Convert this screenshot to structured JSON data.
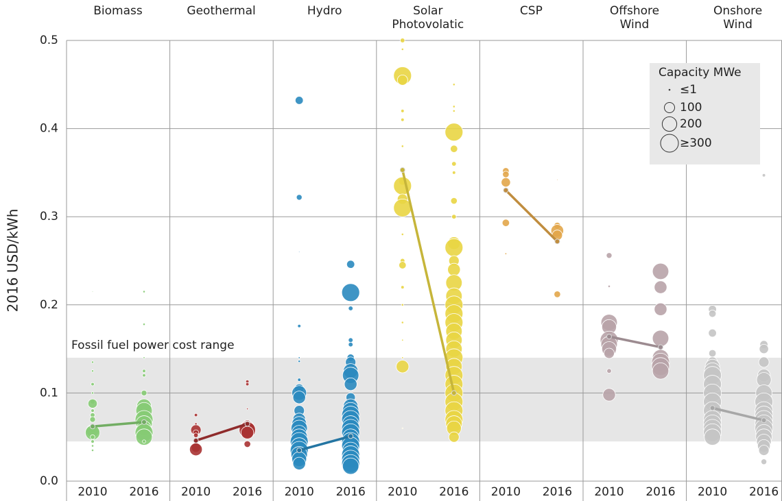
{
  "chart_data": {
    "type": "bubble",
    "y_label": "2016 USD/kWh",
    "ylim": [
      0,
      0.5
    ],
    "yticks": [
      {
        "value": 0,
        "label": "0.0"
      },
      0.1,
      0.2,
      0.3,
      0.4,
      0.5
    ],
    "grid": true,
    "band": {
      "label": "Fossil fuel power cost range",
      "range": [
        0.045,
        0.14
      ],
      "color": "#e6e6e6"
    },
    "size_max": 300,
    "legend": {
      "title": "Capacity MWe",
      "sizes": [
        {
          "value": 1,
          "label": "≤1"
        },
        100,
        200,
        {
          "value": 300,
          "label": "≥300"
        }
      ]
    },
    "series": [
      {
        "name": "Biomass",
        "color": "#86cb74",
        "groups": [
          {
            "year": "2010",
            "average": 0.062,
            "values": [
              0.215,
              0.135,
              0.125,
              0.11,
              0.1,
              0.09,
              0.088,
              0.08,
              0.075,
              0.07,
              0.06,
              0.057,
              0.055,
              0.05,
              0.045,
              0.04,
              0.035
            ],
            "sizes": [
              1,
              5,
              5,
              10,
              5,
              20,
              80,
              10,
              20,
              30,
              60,
              150,
              200,
              20,
              10,
              5,
              5
            ]
          },
          {
            "year": "2016",
            "average": 0.067,
            "values": [
              0.215,
              0.178,
              0.14,
              0.125,
              0.12,
              0.1,
              0.085,
              0.08,
              0.07,
              0.065,
              0.06,
              0.055,
              0.05,
              0.045
            ],
            "sizes": [
              5,
              5,
              3,
              10,
              10,
              30,
              200,
              250,
              300,
              250,
              200,
              300,
              250,
              10
            ]
          }
        ]
      },
      {
        "name": "Geothermal",
        "color": "#a83232",
        "groups": [
          {
            "year": "2010",
            "average": 0.046,
            "values": [
              0.075,
              0.065,
              0.058,
              0.055,
              0.052,
              0.046,
              0.038,
              0.036
            ],
            "sizes": [
              10,
              5,
              100,
              30,
              20,
              10,
              80,
              150
            ]
          },
          {
            "year": "2016",
            "average": 0.065,
            "values": [
              0.113,
              0.11,
              0.082,
              0.065,
              0.062,
              0.06,
              0.058,
              0.055,
              0.042
            ],
            "sizes": [
              10,
              10,
              3,
              60,
              120,
              200,
              250,
              150,
              40
            ]
          }
        ]
      },
      {
        "name": "Hydro",
        "color": "#2a8abf",
        "groups": [
          {
            "year": "2010",
            "average": 0.035,
            "values": [
              0.432,
              0.322,
              0.26,
              0.176,
              0.14,
              0.136,
              0.115,
              0.105,
              0.1,
              0.095,
              0.08,
              0.07,
              0.065,
              0.06,
              0.055,
              0.05,
              0.045,
              0.04,
              0.035,
              0.03,
              0.025,
              0.02
            ],
            "sizes": [
              60,
              30,
              1,
              10,
              3,
              5,
              10,
              80,
              200,
              150,
              100,
              150,
              200,
              250,
              200,
              250,
              300,
              250,
              300,
              250,
              200,
              150
            ]
          },
          {
            "year": "2016",
            "average": 0.051,
            "values": [
              0.246,
              0.214,
              0.196,
              0.16,
              0.155,
              0.14,
              0.135,
              0.125,
              0.12,
              0.11,
              0.095,
              0.085,
              0.08,
              0.075,
              0.07,
              0.065,
              0.06,
              0.055,
              0.05,
              0.045,
              0.04,
              0.035,
              0.03,
              0.025,
              0.02,
              0.017
            ],
            "sizes": [
              60,
              300,
              20,
              20,
              20,
              50,
              100,
              200,
              250,
              150,
              80,
              200,
              250,
              300,
              300,
              250,
              300,
              300,
              250,
              300,
              300,
              250,
              300,
              300,
              300,
              250
            ]
          }
        ]
      },
      {
        "name": "Solar\nPhotovolatic",
        "color": "#e9d544",
        "groups": [
          {
            "year": "2010",
            "average": 0.353,
            "values": [
              0.5,
              0.49,
              0.46,
              0.455,
              0.42,
              0.41,
              0.38,
              0.353,
              0.34,
              0.335,
              0.32,
              0.31,
              0.28,
              0.25,
              0.245,
              0.22,
              0.2,
              0.18,
              0.16,
              0.14,
              0.13,
              0.06
            ],
            "sizes": [
              20,
              5,
              300,
              100,
              10,
              10,
              5,
              10,
              50,
              300,
              100,
              300,
              5,
              20,
              50,
              10,
              5,
              5,
              3,
              3,
              150,
              1
            ]
          },
          {
            "year": "2016",
            "average": 0.1,
            "values": [
              0.45,
              0.425,
              0.42,
              0.396,
              0.377,
              0.36,
              0.35,
              0.318,
              0.3,
              0.27,
              0.265,
              0.25,
              0.24,
              0.225,
              0.21,
              0.2,
              0.19,
              0.18,
              0.17,
              0.16,
              0.15,
              0.14,
              0.13,
              0.12,
              0.11,
              0.1,
              0.09,
              0.08,
              0.07,
              0.065,
              0.06,
              0.05
            ],
            "sizes": [
              5,
              5,
              5,
              300,
              50,
              20,
              10,
              40,
              20,
              150,
              300,
              100,
              150,
              250,
              250,
              300,
              300,
              300,
              250,
              250,
              250,
              300,
              250,
              300,
              300,
              300,
              300,
              300,
              300,
              250,
              200,
              100
            ]
          }
        ]
      },
      {
        "name": "CSP",
        "color": "#e2a64a",
        "groups": [
          {
            "year": "2010",
            "average": 0.33,
            "values": [
              0.352,
              0.348,
              0.339,
              0.33,
              0.293,
              0.258
            ],
            "sizes": [
              40,
              40,
              80,
              30,
              50,
              3
            ]
          },
          {
            "year": "2016",
            "average": 0.272,
            "values": [
              0.342,
              0.29,
              0.284,
              0.279,
              0.272,
              0.212
            ],
            "sizes": [
              1,
              40,
              150,
              100,
              20,
              40
            ]
          }
        ]
      },
      {
        "name": "Offshore\nWind",
        "color": "#b8a3a9",
        "groups": [
          {
            "year": "2010",
            "average": 0.164,
            "values": [
              0.256,
              0.221,
              0.18,
              0.175,
              0.16,
              0.155,
              0.15,
              0.145,
              0.125,
              0.098
            ],
            "sizes": [
              30,
              5,
              250,
              200,
              300,
              250,
              200,
              100,
              20,
              150
            ]
          },
          {
            "year": "2016",
            "average": 0.152,
            "values": [
              0.238,
              0.22,
              0.195,
              0.162,
              0.14,
              0.135,
              0.13,
              0.125
            ],
            "sizes": [
              250,
              150,
              150,
              250,
              250,
              300,
              300,
              250
            ]
          }
        ]
      },
      {
        "name": "Onshore\nWind",
        "color": "#c4c4c4",
        "groups": [
          {
            "year": "2010",
            "average": 0.083,
            "values": [
              0.195,
              0.19,
              0.168,
              0.145,
              0.135,
              0.13,
              0.125,
              0.12,
              0.11,
              0.1,
              0.09,
              0.08,
              0.07,
              0.065,
              0.06,
              0.055,
              0.05
            ],
            "sizes": [
              60,
              50,
              60,
              50,
              100,
              200,
              250,
              300,
              300,
              300,
              300,
              300,
              300,
              300,
              300,
              300,
              250
            ]
          },
          {
            "year": "2016",
            "average": 0.069,
            "values": [
              0.347,
              0.155,
              0.15,
              0.135,
              0.12,
              0.115,
              0.1,
              0.09,
              0.08,
              0.075,
              0.07,
              0.065,
              0.06,
              0.055,
              0.05,
              0.045,
              0.04,
              0.035,
              0.022
            ],
            "sizes": [
              10,
              60,
              80,
              100,
              150,
              200,
              250,
              300,
              300,
              300,
              300,
              300,
              300,
              250,
              250,
              200,
              150,
              100,
              30
            ]
          }
        ]
      }
    ]
  }
}
